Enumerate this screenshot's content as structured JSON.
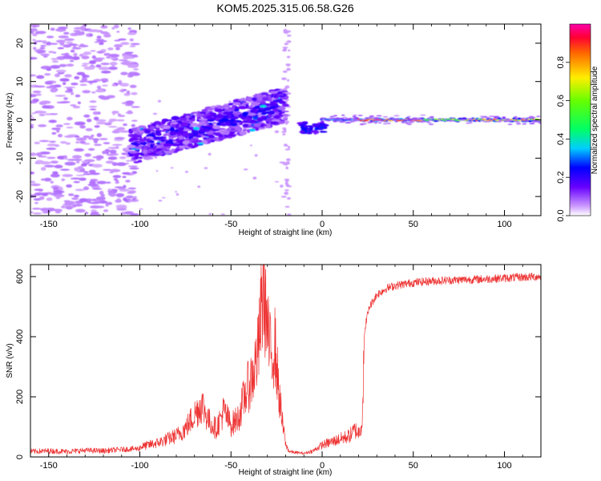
{
  "figure": {
    "title": "KOM5.2025.315.06.58.G26"
  },
  "chart_data": [
    {
      "type": "heatmap",
      "xlabel": "Height of straight line (km)",
      "ylabel": "Frequency (Hz)",
      "xlim": [
        -160,
        120
      ],
      "ylim": [
        -25,
        25
      ],
      "x_ticks": [
        -150,
        -100,
        -50,
        0,
        50,
        100
      ],
      "y_ticks": [
        -20,
        -10,
        0,
        10,
        20
      ],
      "colorbar": {
        "label": "Normalized spectral amplitude",
        "range": [
          0,
          1
        ],
        "ticks": [
          0.0,
          0.2,
          0.4,
          0.6,
          0.8
        ]
      },
      "features": [
        {
          "x_range": [
            -160,
            -105
          ],
          "y_range": [
            -25,
            25
          ],
          "amplitude": 0.1
        },
        {
          "x_range": [
            -105,
            -20
          ],
          "y_range": [
            -10,
            6
          ],
          "amplitude": 0.2
        },
        {
          "x_range": [
            -45,
            -20
          ],
          "y_range": [
            0,
            6
          ],
          "amplitude": 0.3
        },
        {
          "x_range": [
            0,
            120
          ],
          "y_range": [
            -1,
            1
          ],
          "amplitude": 0.9
        }
      ]
    },
    {
      "type": "line",
      "xlabel": "Height of straight line (km)",
      "ylabel": "SNR (v/v)",
      "xlim": [
        -160,
        120
      ],
      "ylim": [
        0,
        640
      ],
      "x_ticks": [
        -150,
        -100,
        -50,
        0,
        50,
        100
      ],
      "y_ticks": [
        0,
        200,
        400,
        600
      ],
      "line_color": "#ee3333",
      "series": [
        {
          "x": [
            -160,
            -150,
            -140,
            -130,
            -120,
            -110,
            -100,
            -90,
            -80,
            -75,
            -70,
            -66,
            -62,
            -58,
            -54,
            -50,
            -46,
            -42,
            -38,
            -35,
            -32,
            -30,
            -28,
            -26,
            -24,
            -22,
            -20,
            -18,
            -15,
            -10,
            -5,
            0,
            5,
            10,
            15,
            18,
            20,
            22,
            23,
            24,
            26,
            30,
            35,
            40,
            50,
            60,
            70,
            80,
            90,
            100,
            110,
            120
          ],
          "y": [
            18,
            20,
            18,
            22,
            20,
            25,
            28,
            40,
            60,
            80,
            120,
            150,
            100,
            80,
            130,
            90,
            110,
            180,
            230,
            300,
            500,
            350,
            280,
            320,
            200,
            100,
            40,
            18,
            15,
            12,
            20,
            40,
            50,
            60,
            70,
            90,
            80,
            120,
            380,
            450,
            500,
            540,
            560,
            570,
            580,
            585,
            588,
            590,
            592,
            595,
            598,
            600
          ]
        }
      ]
    }
  ]
}
